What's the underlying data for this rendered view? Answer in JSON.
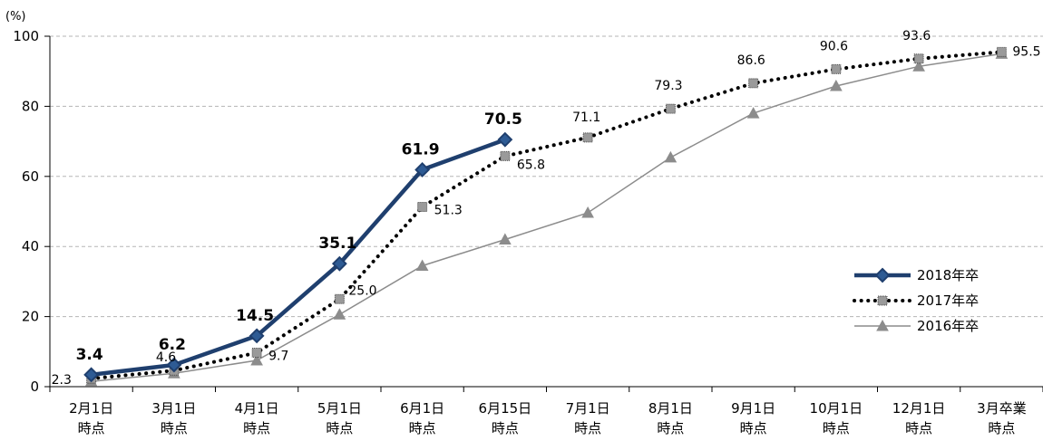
{
  "chart_data": {
    "type": "line",
    "ylabel": "(%)",
    "ylim": [
      0,
      100
    ],
    "yticks": [
      0,
      20,
      40,
      60,
      80,
      100
    ],
    "grid": true,
    "legend_position": "right",
    "categories": [
      [
        "2月1日",
        "時点"
      ],
      [
        "3月1日",
        "時点"
      ],
      [
        "4月1日",
        "時点"
      ],
      [
        "5月1日",
        "時点"
      ],
      [
        "6月1日",
        "時点"
      ],
      [
        "6月15日",
        "時点"
      ],
      [
        "7月1日",
        "時点"
      ],
      [
        "8月1日",
        "時点"
      ],
      [
        "9月1日",
        "時点"
      ],
      [
        "10月1日",
        "時点"
      ],
      [
        "12月1日",
        "時点"
      ],
      [
        "3月卒業",
        "時点"
      ]
    ],
    "series": [
      {
        "name": "2018年卒",
        "color": "#1f3f6e",
        "style": "solid-thick",
        "marker": "diamond",
        "values": [
          3.4,
          6.2,
          14.5,
          35.1,
          61.9,
          70.5,
          null,
          null,
          null,
          null,
          null,
          null
        ],
        "labels": [
          "3.4",
          "6.2",
          "14.5",
          "35.1",
          "61.9",
          "70.5",
          "",
          "",
          "",
          "",
          "",
          ""
        ]
      },
      {
        "name": "2017年卒",
        "color": "#000000",
        "style": "dotted",
        "marker": "square",
        "values": [
          2.3,
          4.6,
          9.7,
          25.0,
          51.3,
          65.8,
          71.1,
          79.3,
          86.6,
          90.6,
          93.6,
          95.5
        ],
        "labels": [
          "2.3",
          "4.6",
          "9.7",
          "25.0",
          "51.3",
          "65.8",
          "71.1",
          "79.3",
          "86.6",
          "90.6",
          "93.6",
          "95.5"
        ]
      },
      {
        "name": "2016年卒",
        "color": "#8c8c8c",
        "style": "solid-thin",
        "marker": "triangle",
        "values": [
          1.5,
          3.8,
          7.5,
          20.6,
          34.5,
          42.0,
          49.6,
          65.4,
          78.0,
          85.8,
          91.4,
          95.0
        ],
        "labels": [
          "",
          "",
          "",
          "",
          "",
          "",
          "",
          "",
          "",
          "",
          "",
          ""
        ]
      }
    ]
  }
}
